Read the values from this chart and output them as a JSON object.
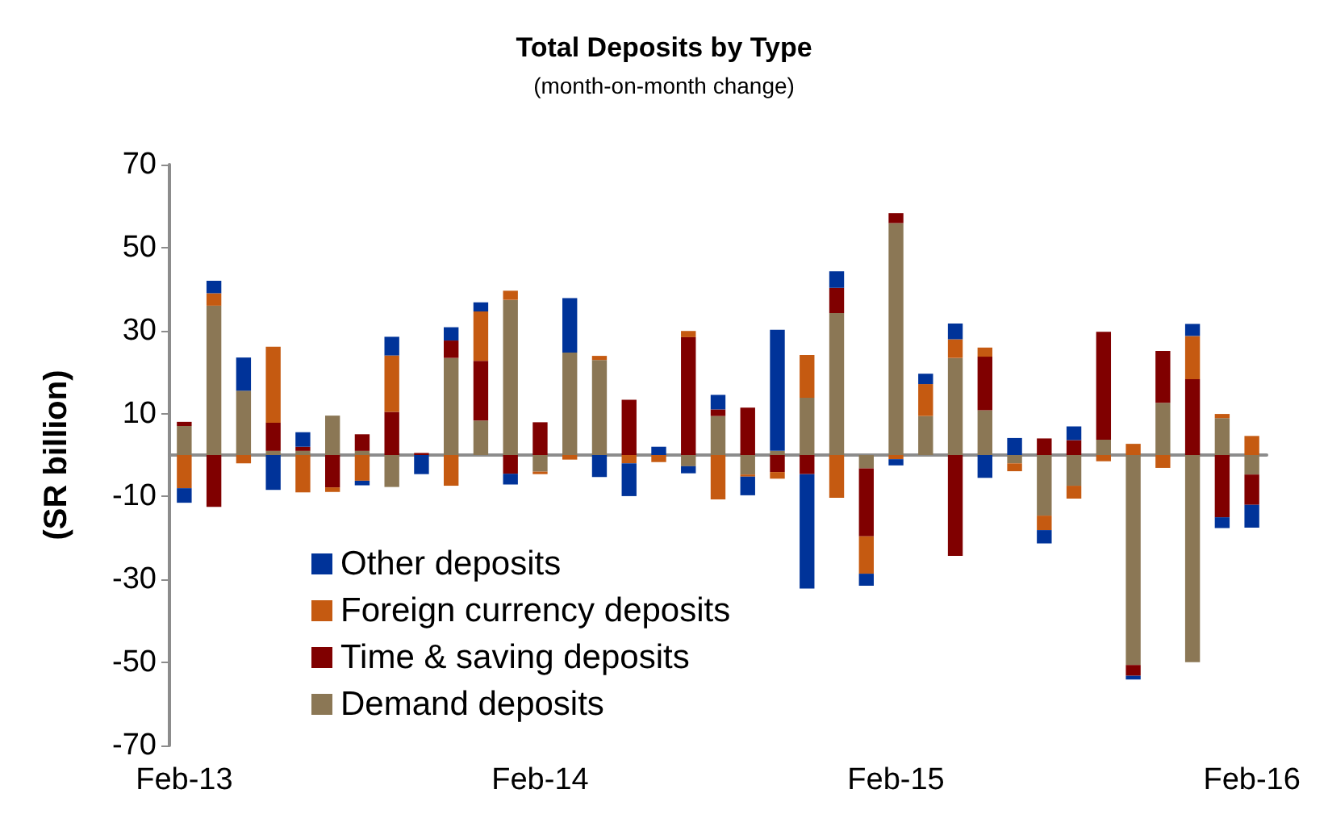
{
  "chart_data": {
    "type": "bar",
    "title": "Total Deposits by Type",
    "subtitle": "(month-on-month change)",
    "ylabel": "(SR billion)",
    "categories": [
      "Feb-13",
      null,
      null,
      null,
      null,
      null,
      null,
      null,
      null,
      null,
      null,
      null,
      "Feb-14",
      null,
      null,
      null,
      null,
      null,
      null,
      null,
      null,
      null,
      null,
      null,
      "Feb-15",
      null,
      null,
      null,
      null,
      null,
      null,
      null,
      null,
      null,
      null,
      null,
      "Feb-16"
    ],
    "stacked": true,
    "ylim": [
      -70,
      70
    ],
    "yticks": [
      -70,
      -50,
      -30,
      -10,
      10,
      30,
      50,
      70
    ],
    "grid": false,
    "legend": "bottom left",
    "series": [
      {
        "name": "Demand deposits",
        "color": "#8b7755",
        "values": [
          7,
          36,
          15.5,
          1,
          1,
          9.5,
          1,
          -7.7,
          0,
          23.4,
          8.3,
          37.4,
          -4,
          24.7,
          22.9,
          0,
          0,
          -2.7,
          9.4,
          -4.7,
          1,
          13.8,
          34.2,
          -3.2,
          55.9,
          9.4,
          23.4,
          10.8,
          -2,
          -14.6,
          -7.4,
          3.7,
          -50.6,
          12.6,
          -49.9,
          8.9,
          -4.7
        ]
      },
      {
        "name": "Time & saving deposits",
        "color": "#800000",
        "values": [
          1,
          -12.5,
          0,
          6.8,
          1,
          -7.8,
          4,
          10.4,
          0.5,
          4.2,
          14.4,
          -4.5,
          7.9,
          0,
          0,
          13.3,
          0,
          28.4,
          1.6,
          11.4,
          -4.1,
          -4.6,
          6.1,
          -16.4,
          2.4,
          0,
          -24.3,
          12.9,
          0,
          4,
          3.6,
          26,
          -2.6,
          12.5,
          18.3,
          -15,
          -7.3
        ]
      },
      {
        "name": "Foreign currency deposits",
        "color": "#c55a11",
        "values": [
          -8,
          3,
          -2,
          18.3,
          -9,
          -1.1,
          -6.2,
          13.6,
          0,
          -7.4,
          11.9,
          2.2,
          -0.6,
          -1.1,
          1,
          -2,
          -1.7,
          1.5,
          -10.7,
          -0.5,
          -1.6,
          10.3,
          -10.3,
          -9,
          -1,
          7.7,
          4.5,
          2.2,
          -1.9,
          -3.5,
          -3.1,
          -1.5,
          2.7,
          -3.1,
          10.4,
          1,
          4.6
        ]
      },
      {
        "name": "Other deposits",
        "color": "#003399",
        "values": [
          -3.5,
          3,
          8,
          -8.4,
          3.5,
          0,
          -1.1,
          4.5,
          -4.6,
          3.2,
          2.2,
          -2.6,
          0,
          13.1,
          -5.3,
          -7.9,
          2,
          -1.7,
          3.5,
          -4.5,
          29.2,
          -27.6,
          4,
          -2.9,
          -1.5,
          2.5,
          3.8,
          -5.5,
          4.1,
          -3.2,
          3.3,
          0,
          -0.9,
          0,
          2.9,
          -2.6,
          -5.5
        ]
      }
    ]
  }
}
